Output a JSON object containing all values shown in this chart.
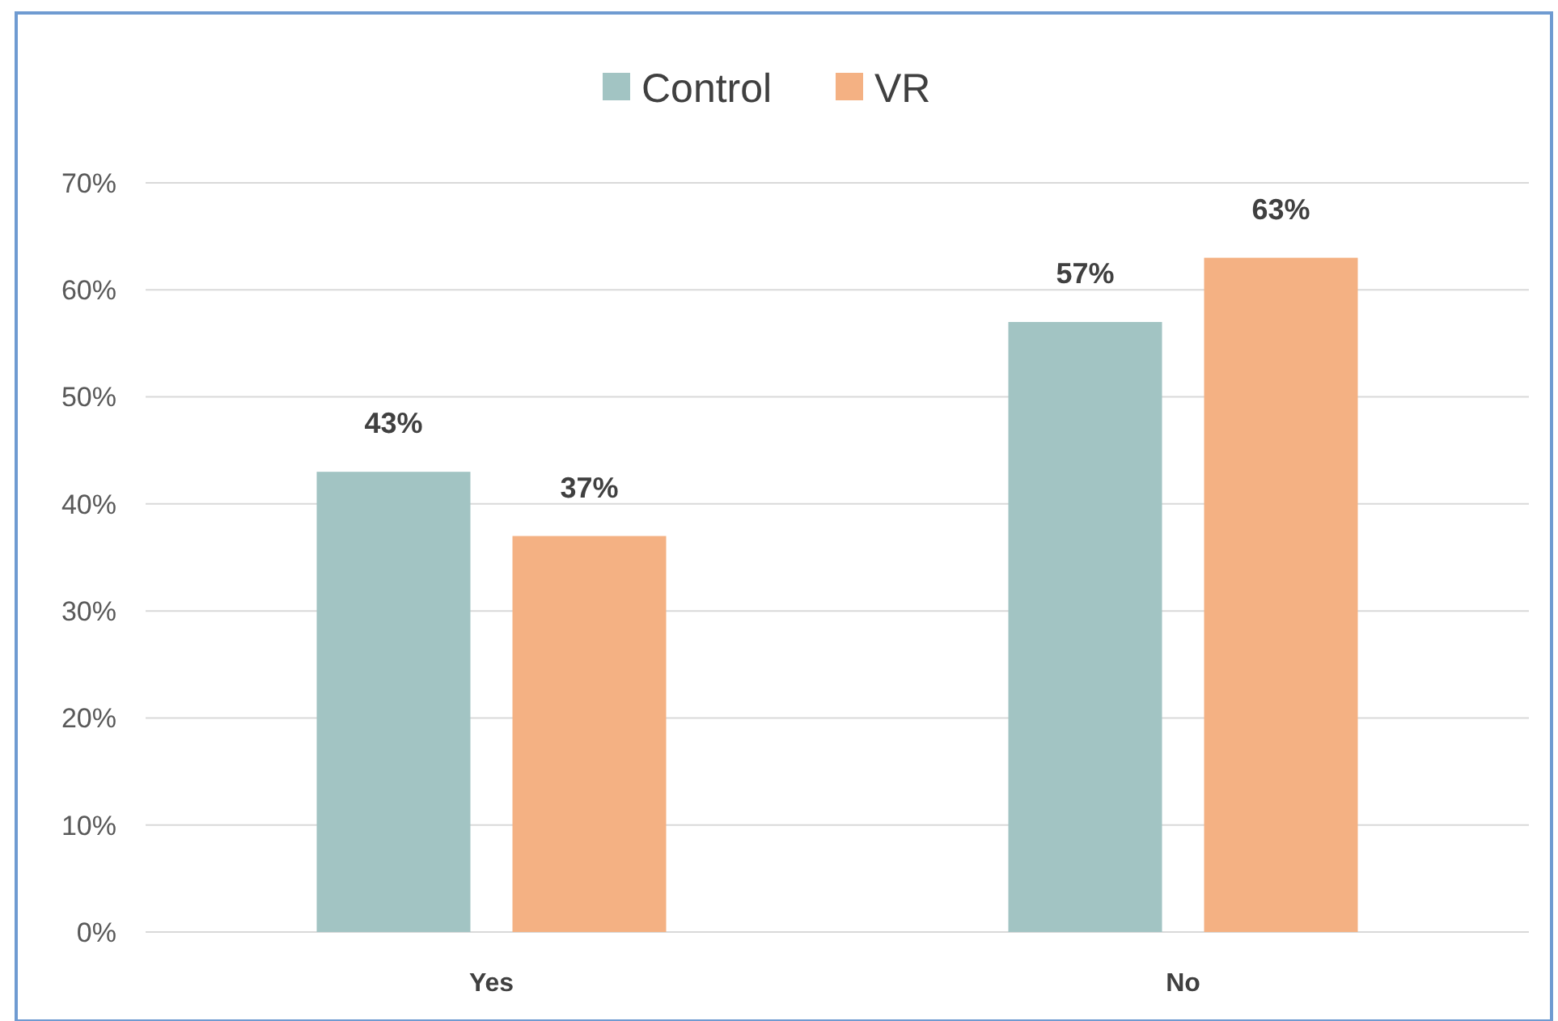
{
  "chart_data": {
    "type": "bar",
    "categories": [
      "Yes",
      "No"
    ],
    "series": [
      {
        "name": "Control",
        "color": "#a2c4c3",
        "values": [
          43,
          57
        ],
        "value_labels": [
          "43%",
          "57%"
        ]
      },
      {
        "name": "VR",
        "color": "#f4b183",
        "values": [
          37,
          63
        ],
        "value_labels": [
          "37%",
          "63%"
        ]
      }
    ],
    "ylim": [
      0,
      70
    ],
    "yticks": [
      {
        "value": 0,
        "label": "0%"
      },
      {
        "value": 10,
        "label": "10%"
      },
      {
        "value": 20,
        "label": "20%"
      },
      {
        "value": 30,
        "label": "30%"
      },
      {
        "value": 40,
        "label": "40%"
      },
      {
        "value": 50,
        "label": "50%"
      },
      {
        "value": 60,
        "label": "60%"
      },
      {
        "value": 70,
        "label": "70%"
      }
    ],
    "grid": "y",
    "legend": "top"
  }
}
